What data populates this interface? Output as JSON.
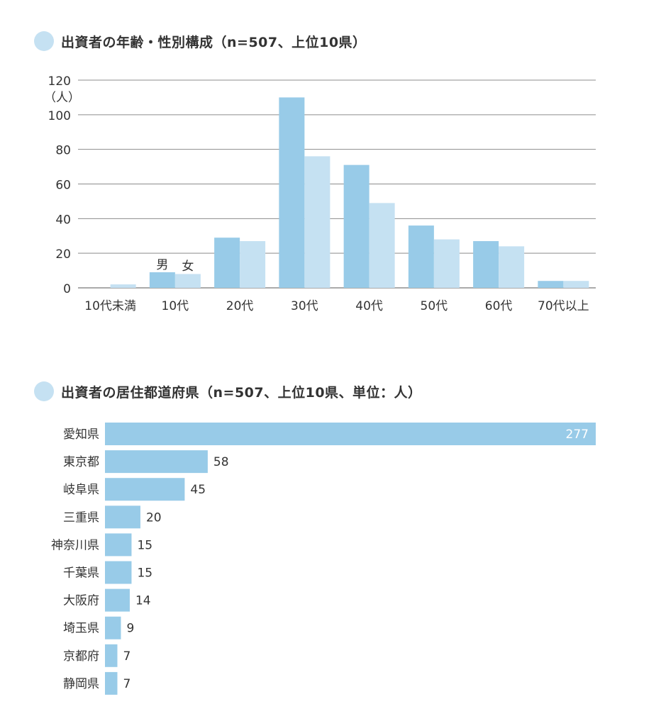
{
  "section1": {
    "title": "出資者の年齢・性別構成（n=507、上位10県）"
  },
  "section2": {
    "title": "出資者の居住都道府県（n=507、上位10県、単位：人）"
  },
  "chart_data": [
    {
      "type": "bar",
      "ylabel": "（人）",
      "ylim": [
        0,
        120
      ],
      "yticks": [
        0,
        20,
        40,
        60,
        80,
        100,
        120
      ],
      "grid": true,
      "categories": [
        "10代未満",
        "10代",
        "20代",
        "30代",
        "40代",
        "50代",
        "60代",
        "70代以上"
      ],
      "series": [
        {
          "name": "男",
          "color": "#98cbe8",
          "values": [
            0,
            9,
            29,
            110,
            71,
            36,
            27,
            4
          ]
        },
        {
          "name": "女",
          "color": "#c5e1f2",
          "values": [
            2,
            8,
            27,
            76,
            49,
            28,
            24,
            4
          ]
        }
      ]
    },
    {
      "type": "bar",
      "orientation": "horizontal",
      "color": "#98cbe8",
      "categories": [
        "愛知県",
        "東京都",
        "岐阜県",
        "三重県",
        "神奈川県",
        "千葉県",
        "大阪府",
        "埼玉県",
        "京都府",
        "静岡県"
      ],
      "values": [
        277,
        58,
        45,
        20,
        15,
        15,
        14,
        9,
        7,
        7
      ]
    }
  ]
}
